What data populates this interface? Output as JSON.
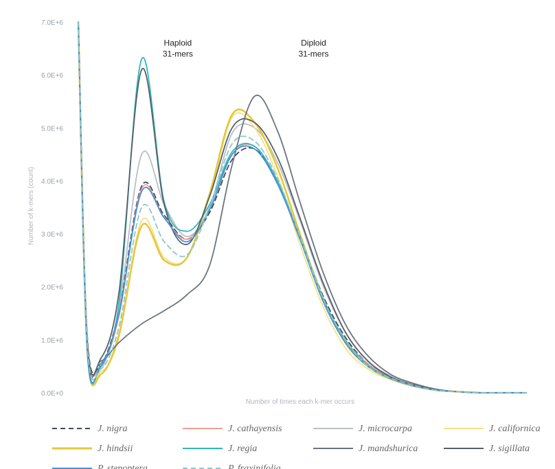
{
  "chart_data": {
    "type": "line",
    "title": "",
    "xlabel": "Number of times each k-mer occurs",
    "ylabel": "Number of k-mers (count)",
    "x": [
      1,
      3,
      6,
      10,
      15,
      20,
      25,
      30,
      35,
      40,
      45,
      50,
      55,
      60,
      65,
      70,
      75,
      80,
      85,
      90,
      95,
      100
    ],
    "xlim": [
      1,
      100
    ],
    "ylim": [
      0,
      7
    ],
    "yticks": [
      "0.0E+0",
      "1.0E+6",
      "2.0E+6",
      "3.0E+6",
      "4.0E+6",
      "5.0E+6",
      "6.0E+6",
      "7.0E+6"
    ],
    "grid": false,
    "legend_position": "bottom",
    "annotations": [
      {
        "lines": [
          "Haploid",
          "31-mers"
        ],
        "x": 23,
        "y": 6.55
      },
      {
        "lines": [
          "Diploid",
          "31-mers"
        ],
        "x": 53,
        "y": 6.55
      }
    ],
    "series": [
      {
        "name": "J. nigra",
        "color": "#3b4a5e",
        "dash": "dash",
        "values": [
          7.0,
          1.05,
          0.55,
          1.55,
          3.9,
          3.35,
          2.9,
          3.4,
          4.4,
          4.6,
          4.0,
          2.95,
          1.85,
          1.05,
          0.55,
          0.3,
          0.15,
          0.06,
          0.02,
          0.0,
          0.0,
          0.0
        ]
      },
      {
        "name": "J. cathayensis",
        "color": "#f0a090",
        "dash": "solid",
        "values": [
          7.0,
          1.0,
          0.5,
          1.45,
          3.85,
          3.3,
          2.9,
          3.45,
          4.5,
          4.65,
          4.0,
          2.95,
          1.8,
          1.0,
          0.55,
          0.3,
          0.15,
          0.06,
          0.02,
          0.0,
          0.0,
          0.0
        ]
      },
      {
        "name": "J. microcarpa",
        "color": "#b8bfc6",
        "dash": "solid",
        "values": [
          7.0,
          0.95,
          0.45,
          1.6,
          4.5,
          3.55,
          2.95,
          3.5,
          4.9,
          5.0,
          4.35,
          3.25,
          2.05,
          1.15,
          0.6,
          0.32,
          0.16,
          0.06,
          0.02,
          0.0,
          0.0,
          0.0
        ]
      },
      {
        "name": "J. californica",
        "color": "#f4e08a",
        "dash": "solid",
        "values": [
          7.0,
          0.8,
          0.4,
          1.05,
          3.25,
          2.55,
          2.55,
          3.7,
          5.2,
          5.0,
          4.1,
          2.8,
          1.65,
          0.85,
          0.45,
          0.25,
          0.12,
          0.05,
          0.02,
          0.0,
          0.0,
          0.0
        ]
      },
      {
        "name": "J. hindsii",
        "color": "#e6c73a",
        "dash": "solid",
        "values": [
          7.0,
          0.8,
          0.35,
          1.1,
          3.15,
          2.5,
          2.55,
          3.75,
          5.25,
          5.1,
          4.25,
          3.0,
          1.8,
          0.95,
          0.5,
          0.27,
          0.14,
          0.05,
          0.02,
          0.0,
          0.0,
          0.0
        ]
      },
      {
        "name": "J. regia",
        "color": "#2fb8b8",
        "dash": "solid",
        "values": [
          7.0,
          0.75,
          0.55,
          1.7,
          6.3,
          3.6,
          3.05,
          3.55,
          4.55,
          4.65,
          4.0,
          2.95,
          1.8,
          1.0,
          0.52,
          0.28,
          0.14,
          0.05,
          0.02,
          0.0,
          0.0,
          0.0
        ]
      },
      {
        "name": "J. mandshurica",
        "color": "#6b7480",
        "dash": "solid",
        "values": [
          7.0,
          0.85,
          0.6,
          0.95,
          1.3,
          1.55,
          1.85,
          2.4,
          4.3,
          5.6,
          4.95,
          3.6,
          2.3,
          1.3,
          0.7,
          0.35,
          0.18,
          0.07,
          0.02,
          0.0,
          0.0,
          0.0
        ]
      },
      {
        "name": "J. sigillata",
        "color": "#555f6b",
        "dash": "solid",
        "values": [
          7.0,
          0.95,
          0.65,
          1.9,
          6.1,
          3.55,
          2.8,
          3.7,
          5.0,
          5.1,
          4.45,
          3.3,
          2.1,
          1.15,
          0.6,
          0.3,
          0.15,
          0.06,
          0.02,
          0.0,
          0.0,
          0.0
        ]
      },
      {
        "name": "P. stenoptera",
        "color": "#4a8fd4",
        "dash": "solid",
        "values": [
          7.0,
          0.8,
          0.5,
          1.5,
          3.8,
          3.3,
          2.85,
          3.45,
          4.5,
          4.6,
          3.95,
          2.9,
          1.75,
          0.95,
          0.5,
          0.27,
          0.13,
          0.05,
          0.02,
          0.0,
          0.0,
          0.0
        ]
      },
      {
        "name": "P. fraxinifolia",
        "color": "#8ec7c7",
        "dash": "dash",
        "values": [
          7.0,
          0.9,
          0.45,
          1.25,
          3.5,
          2.85,
          2.6,
          3.5,
          4.7,
          4.75,
          4.05,
          2.95,
          1.8,
          1.0,
          0.5,
          0.28,
          0.14,
          0.05,
          0.02,
          0.0,
          0.0,
          0.0
        ]
      }
    ]
  }
}
